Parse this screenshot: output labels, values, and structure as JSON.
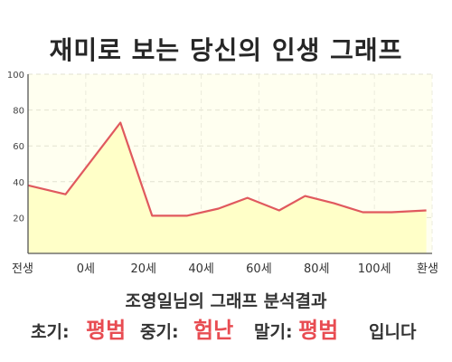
{
  "title": "재미로 보는 당신의 인생 그래프",
  "subtitle": "조영일님의 그래프 분석결과",
  "summary": {
    "early_label": "초기:",
    "early_value": "평범",
    "mid_label": "중기:",
    "mid_value": "험난",
    "late_label": "말기:",
    "late_value": "평범",
    "ending": "입니다"
  },
  "colors": {
    "line": "#e0595e",
    "fill": "#ffffc8",
    "plot_background": "#fffff0",
    "accent_text": "#e84c52"
  },
  "chart_data": {
    "type": "area",
    "title": "재미로 보는 당신의 인생 그래프",
    "xlabel": "",
    "ylabel": "",
    "x_ticks": [
      "전생",
      "0세",
      "20세",
      "40세",
      "60세",
      "80세",
      "100세",
      "환생"
    ],
    "x": [
      -20,
      0,
      20,
      40,
      60,
      80,
      100,
      120
    ],
    "ylim": [
      0,
      100
    ],
    "y_ticks": [
      20,
      40,
      60,
      80,
      100
    ],
    "grid": true,
    "series": [
      {
        "points": [
          [
            -20,
            38
          ],
          [
            -7,
            33
          ],
          [
            12,
            73
          ],
          [
            23,
            21
          ],
          [
            35,
            21
          ],
          [
            46,
            25
          ],
          [
            56,
            31
          ],
          [
            67,
            24
          ],
          [
            76,
            32
          ],
          [
            86,
            28
          ],
          [
            96,
            23
          ],
          [
            106,
            23
          ],
          [
            118,
            24
          ]
        ]
      }
    ]
  }
}
